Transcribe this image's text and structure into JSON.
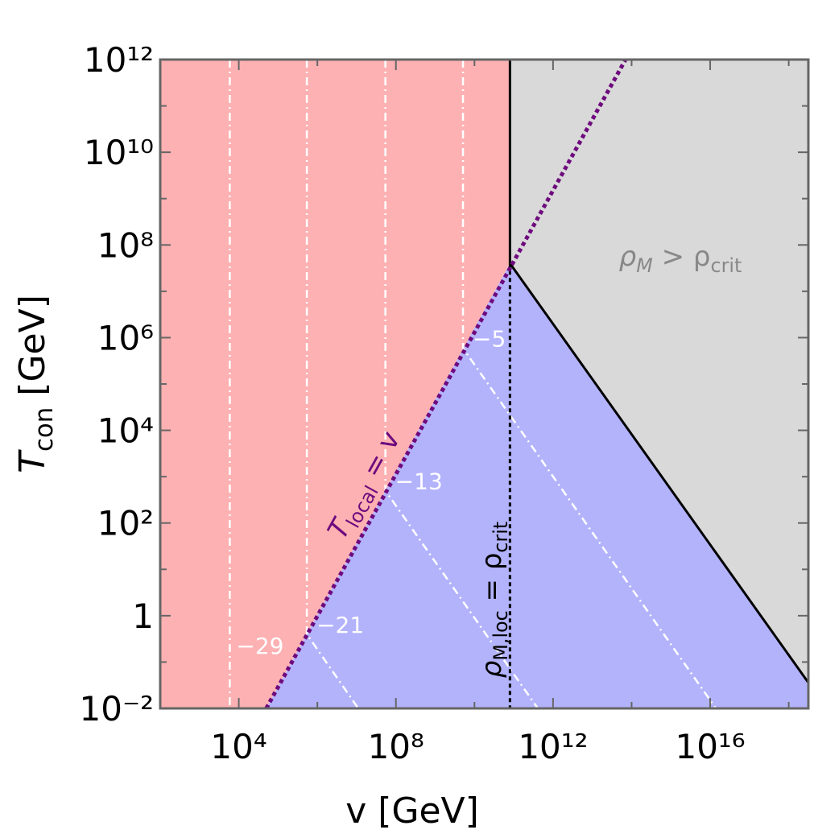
{
  "chart_data": {
    "type": "region",
    "xlabel": [
      "v [GeV]"
    ],
    "ylabel": [
      "T",
      "con",
      " [GeV]"
    ],
    "xscale": "log",
    "yscale": "log",
    "xlim": [
      100,
      3.16e+18
    ],
    "ylim": [
      0.01,
      1000000000000.0
    ],
    "xticks": [
      {
        "value": 10000.0,
        "label": "10⁴"
      },
      {
        "value": 100000000.0,
        "label": "10⁸"
      },
      {
        "value": 1000000000000.0,
        "label": "10¹²"
      },
      {
        "value": 1e+16,
        "label": "10¹⁶"
      }
    ],
    "xminor": [
      1000000.0,
      10000000000.0,
      100000000000000.0,
      1e+18
    ],
    "yticks": [
      {
        "value": 0.01,
        "label": "10⁻²"
      },
      1,
      {
        "value": 100,
        "label": "10²"
      },
      {
        "value": 10000.0,
        "label": "10⁴"
      },
      {
        "value": 1000000.0,
        "label": "10⁶"
      },
      {
        "value": 100000000.0,
        "label": "10⁸"
      },
      {
        "value": 10000000000.0,
        "label": "10¹⁰"
      },
      {
        "value": 1000000000000.0,
        "label": "10¹²"
      }
    ],
    "yminor": [
      0.1,
      10,
      1000,
      100000.0,
      10000000.0,
      1000000000.0,
      100000000000.0
    ],
    "regions": [
      {
        "color": "#fdb1b3",
        "x": [
          100,
          50000.0,
          80000000000.0,
          80000000000.0,
          100
        ],
        "y": [
          0.01,
          0.01,
          40000000.0,
          1000000000000.0,
          1000000000000.0
        ]
      },
      {
        "color": "#d9d9d9",
        "x": [
          80000000000.0,
          80000000000.0,
          3.16e+18,
          3.16e+18
        ],
        "y": [
          40000000.0,
          1000000000000.0,
          1000000000000.0,
          0.036
        ]
      },
      {
        "color": "#b3b3fc",
        "x": [
          50000.0,
          80000000000.0,
          3.16e+18,
          3.16e+18
        ],
        "y": [
          0.01,
          40000000.0,
          0.036,
          0.01
        ]
      }
    ],
    "lines": [
      {
        "color": "#ffffff",
        "style": "dashdot",
        "label": "−5",
        "x": [
          5100000000.0,
          5100000000.0,
          1.4e+16
        ],
        "y": [
          1000000000000.0,
          590000.0,
          0.01
        ]
      },
      {
        "color": "#ffffff",
        "style": "dashdot",
        "label": "−13",
        "x": [
          54000000.0,
          54000000.0,
          410000000000.0
        ],
        "y": [
          1000000000000.0,
          500,
          0.01
        ]
      },
      {
        "color": "#ffffff",
        "style": "dashdot",
        "label": "−21",
        "x": [
          540000.0,
          540000.0,
          11000000.0
        ],
        "y": [
          1000000000000.0,
          0.4,
          0.01
        ]
      },
      {
        "color": "#ffffff",
        "style": "dashdot",
        "label": "−29",
        "x": [
          5900,
          5900
        ],
        "y": [
          1000000000000.0,
          0.01
        ]
      },
      {
        "color": "#000000",
        "style": "solid",
        "x": [
          80000000000.0,
          80000000000.0
        ],
        "y": [
          1000000000000.0,
          40000000.0
        ]
      },
      {
        "color": "#000000",
        "style": "solid",
        "x": [
          80000000000.0,
          3.16e+18
        ],
        "y": [
          40000000.0,
          0.036
        ]
      },
      {
        "color": "#000000",
        "style": "dotted",
        "x": [
          80000000000.0,
          80000000000.0
        ],
        "y": [
          40000000.0,
          0.01
        ]
      },
      {
        "color": "#6e0a7e",
        "style": "dotted",
        "x": [
          50000.0,
          70000000000000.0
        ],
        "y": [
          0.01,
          1000000000000.0
        ]
      }
    ],
    "annotations": [
      [
        "ρ",
        "M",
        " > ρ",
        "crit"
      ],
      [
        "T",
        "local",
        " = v"
      ],
      [
        "ρ",
        "M,loc",
        " = ρ",
        "crit"
      ]
    ]
  }
}
